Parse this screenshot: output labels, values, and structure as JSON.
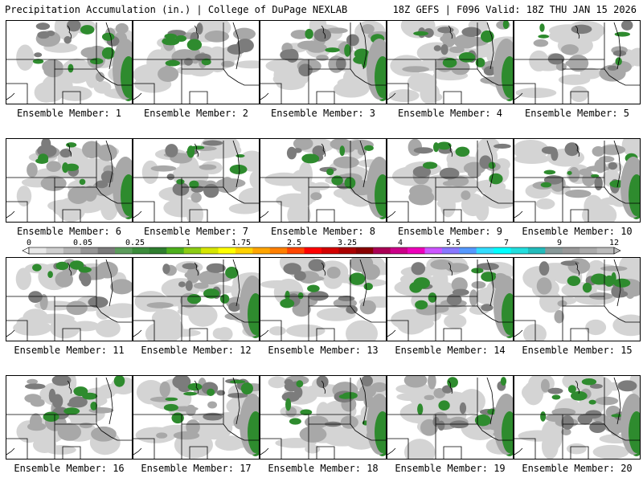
{
  "header": {
    "left": "Precipitation Accumulation (in.) | College of DuPage NEXLAB",
    "right": "18Z GEFS | F096 Valid: 18Z THU JAN 15 2026"
  },
  "member_label_prefix": "Ensemble Member:",
  "members": [
    {
      "id": "1",
      "coverage": 0.55
    },
    {
      "id": "2",
      "coverage": 0.45
    },
    {
      "id": "3",
      "coverage": 0.65
    },
    {
      "id": "4",
      "coverage": 0.6
    },
    {
      "id": "5",
      "coverage": 0.25
    },
    {
      "id": "6",
      "coverage": 0.55
    },
    {
      "id": "7",
      "coverage": 0.5
    },
    {
      "id": "8",
      "coverage": 0.55
    },
    {
      "id": "9",
      "coverage": 0.5
    },
    {
      "id": "10",
      "coverage": 0.55
    },
    {
      "id": "11",
      "coverage": 0.35
    },
    {
      "id": "12",
      "coverage": 0.55
    },
    {
      "id": "13",
      "coverage": 0.45
    },
    {
      "id": "14",
      "coverage": 0.6
    },
    {
      "id": "15",
      "coverage": 0.5
    },
    {
      "id": "16",
      "coverage": 0.5
    },
    {
      "id": "17",
      "coverage": 0.7
    },
    {
      "id": "18",
      "coverage": 0.7
    },
    {
      "id": "19",
      "coverage": 0.55
    },
    {
      "id": "20",
      "coverage": 0.6
    }
  ],
  "colorbar": {
    "labels": [
      "0",
      "0.05",
      "0.25",
      "1",
      "1.75",
      "2.5",
      "3.25",
      "4",
      "5.5",
      "7",
      "9",
      "12"
    ],
    "colors": [
      "#e8e8e8",
      "#cfcfcf",
      "#b4b4b4",
      "#969696",
      "#7a7a7a",
      "#5c9c5c",
      "#3c8c3c",
      "#2e7d2e",
      "#4caf1c",
      "#8ccc14",
      "#d6e600",
      "#ffff00",
      "#ffd200",
      "#ffa500",
      "#ff7f00",
      "#ff4500",
      "#ff0000",
      "#d40000",
      "#aa0000",
      "#880000",
      "#aa0055",
      "#cc0088",
      "#ee00bb",
      "#cc55ff",
      "#8877ff",
      "#5599ff",
      "#33ddff",
      "#00ffff",
      "#22dddd",
      "#22bbbb",
      "#889999",
      "#999999",
      "#aaaaaa",
      "#bbbbbb"
    ]
  },
  "colors": {
    "light_gray": "#d4d4d4",
    "mid_gray": "#a8a8a8",
    "dark_gray": "#7c7c7c",
    "green": "#2e8b2e",
    "border": "#000000"
  }
}
